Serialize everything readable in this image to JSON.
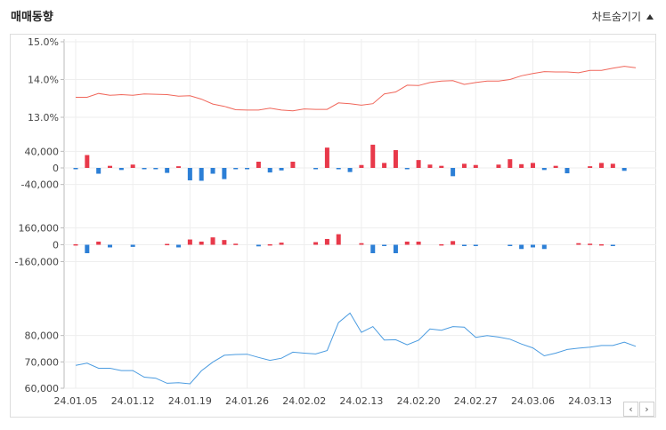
{
  "header": {
    "title": "매매동향",
    "hide_label": "차트숨기기"
  },
  "nav": {
    "prev_glyph": "‹",
    "next_glyph": "›"
  },
  "colors": {
    "up": "#e8394a",
    "down": "#2c7fd6",
    "price_line": "#f0665a",
    "volume_line": "#4a9be0",
    "grid": "#eeeeee",
    "axis": "#bbbbbb"
  },
  "chart_data": {
    "type": "multi-panel",
    "x": [
      "24.01.05",
      "24.01.08",
      "24.01.09",
      "24.01.10",
      "24.01.11",
      "24.01.12",
      "24.01.15",
      "24.01.16",
      "24.01.17",
      "24.01.18",
      "24.01.19",
      "24.01.22",
      "24.01.23",
      "24.01.24",
      "24.01.25",
      "24.01.26",
      "24.01.29",
      "24.01.30",
      "24.01.31",
      "24.02.01",
      "24.02.02",
      "24.02.05",
      "24.02.06",
      "24.02.07",
      "24.02.08",
      "24.02.13",
      "24.02.14",
      "24.02.15",
      "24.02.16",
      "24.02.19",
      "24.02.20",
      "24.02.21",
      "24.02.22",
      "24.02.23",
      "24.02.26",
      "24.02.27",
      "24.02.28",
      "24.02.29",
      "24.03.04",
      "24.03.05",
      "24.03.06",
      "24.03.07",
      "24.03.08",
      "24.03.11",
      "24.03.12",
      "24.03.13",
      "24.03.14",
      "24.03.15",
      "24.03.18",
      "24.03.19"
    ],
    "x_tick_labels": [
      "24.01.05",
      "24.01.12",
      "24.01.19",
      "24.01.26",
      "24.02.02",
      "24.02.13",
      "24.02.20",
      "24.02.27",
      "24.03.06",
      "24.03.13"
    ],
    "panels": [
      {
        "type": "line",
        "yticks": [
          "15.0%",
          "14.0%",
          "13.0%"
        ],
        "ylim": [
          13.0,
          15.0
        ],
        "values": [
          13.53,
          13.53,
          13.63,
          13.58,
          13.6,
          13.58,
          13.62,
          13.61,
          13.6,
          13.56,
          13.57,
          13.48,
          13.35,
          13.29,
          13.2,
          13.19,
          13.19,
          13.24,
          13.19,
          13.17,
          13.22,
          13.21,
          13.21,
          13.38,
          13.36,
          13.32,
          13.36,
          13.62,
          13.67,
          13.85,
          13.84,
          13.92,
          13.96,
          13.97,
          13.87,
          13.92,
          13.96,
          13.96,
          14.0,
          14.1,
          14.16,
          14.21,
          14.2,
          14.2,
          14.18,
          14.24,
          14.24,
          14.3,
          14.35,
          14.31
        ]
      },
      {
        "type": "bar",
        "yticks": [
          "40,000",
          "0",
          "-40,000"
        ],
        "ylim": [
          -60000,
          60000
        ],
        "values": [
          -3000,
          31000,
          -14000,
          5000,
          -5000,
          8000,
          -2000,
          -3000,
          -12000,
          4000,
          -30000,
          -31000,
          -14000,
          -27000,
          -2000,
          -1000,
          15000,
          -11000,
          -6000,
          15000,
          0,
          -1000,
          49000,
          -2000,
          -10000,
          7000,
          56000,
          12000,
          43000,
          -2000,
          19000,
          8000,
          5000,
          -20000,
          10000,
          7000,
          0,
          8000,
          21000,
          9000,
          12000,
          -5000,
          5000,
          -13000,
          0,
          4000,
          12000,
          10000,
          -7000,
          0
        ]
      },
      {
        "type": "bar",
        "yticks": [
          "160,000",
          "0",
          "-160,000"
        ],
        "ylim": [
          -240000,
          240000
        ],
        "values": [
          5000,
          -80000,
          30000,
          -25000,
          0,
          -20000,
          0,
          0,
          8000,
          -25000,
          50000,
          30000,
          70000,
          45000,
          10000,
          0,
          -15000,
          5000,
          20000,
          0,
          0,
          25000,
          55000,
          100000,
          0,
          15000,
          -80000,
          -5000,
          -80000,
          30000,
          30000,
          0,
          5000,
          35000,
          -5000,
          -5000,
          0,
          0,
          -10000,
          -40000,
          -25000,
          -40000,
          0,
          0,
          15000,
          10000,
          5000,
          -5000,
          0,
          0
        ]
      },
      {
        "type": "line",
        "yticks": [
          "80,000",
          "70,000",
          "60,000"
        ],
        "ylim": [
          60000,
          90000
        ],
        "values": [
          68700,
          69500,
          67600,
          67600,
          66700,
          66700,
          64200,
          63800,
          61900,
          62100,
          61700,
          66600,
          69900,
          72500,
          72800,
          72900,
          71700,
          70600,
          71400,
          73700,
          73300,
          73000,
          74300,
          84900,
          88500,
          81200,
          83400,
          78300,
          78400,
          76500,
          78200,
          82500,
          82000,
          83400,
          83200,
          79300,
          80000,
          79400,
          78600,
          76800,
          75300,
          72300,
          73300,
          74700,
          75200,
          75600,
          76200,
          76200,
          77500,
          75900
        ]
      }
    ]
  }
}
